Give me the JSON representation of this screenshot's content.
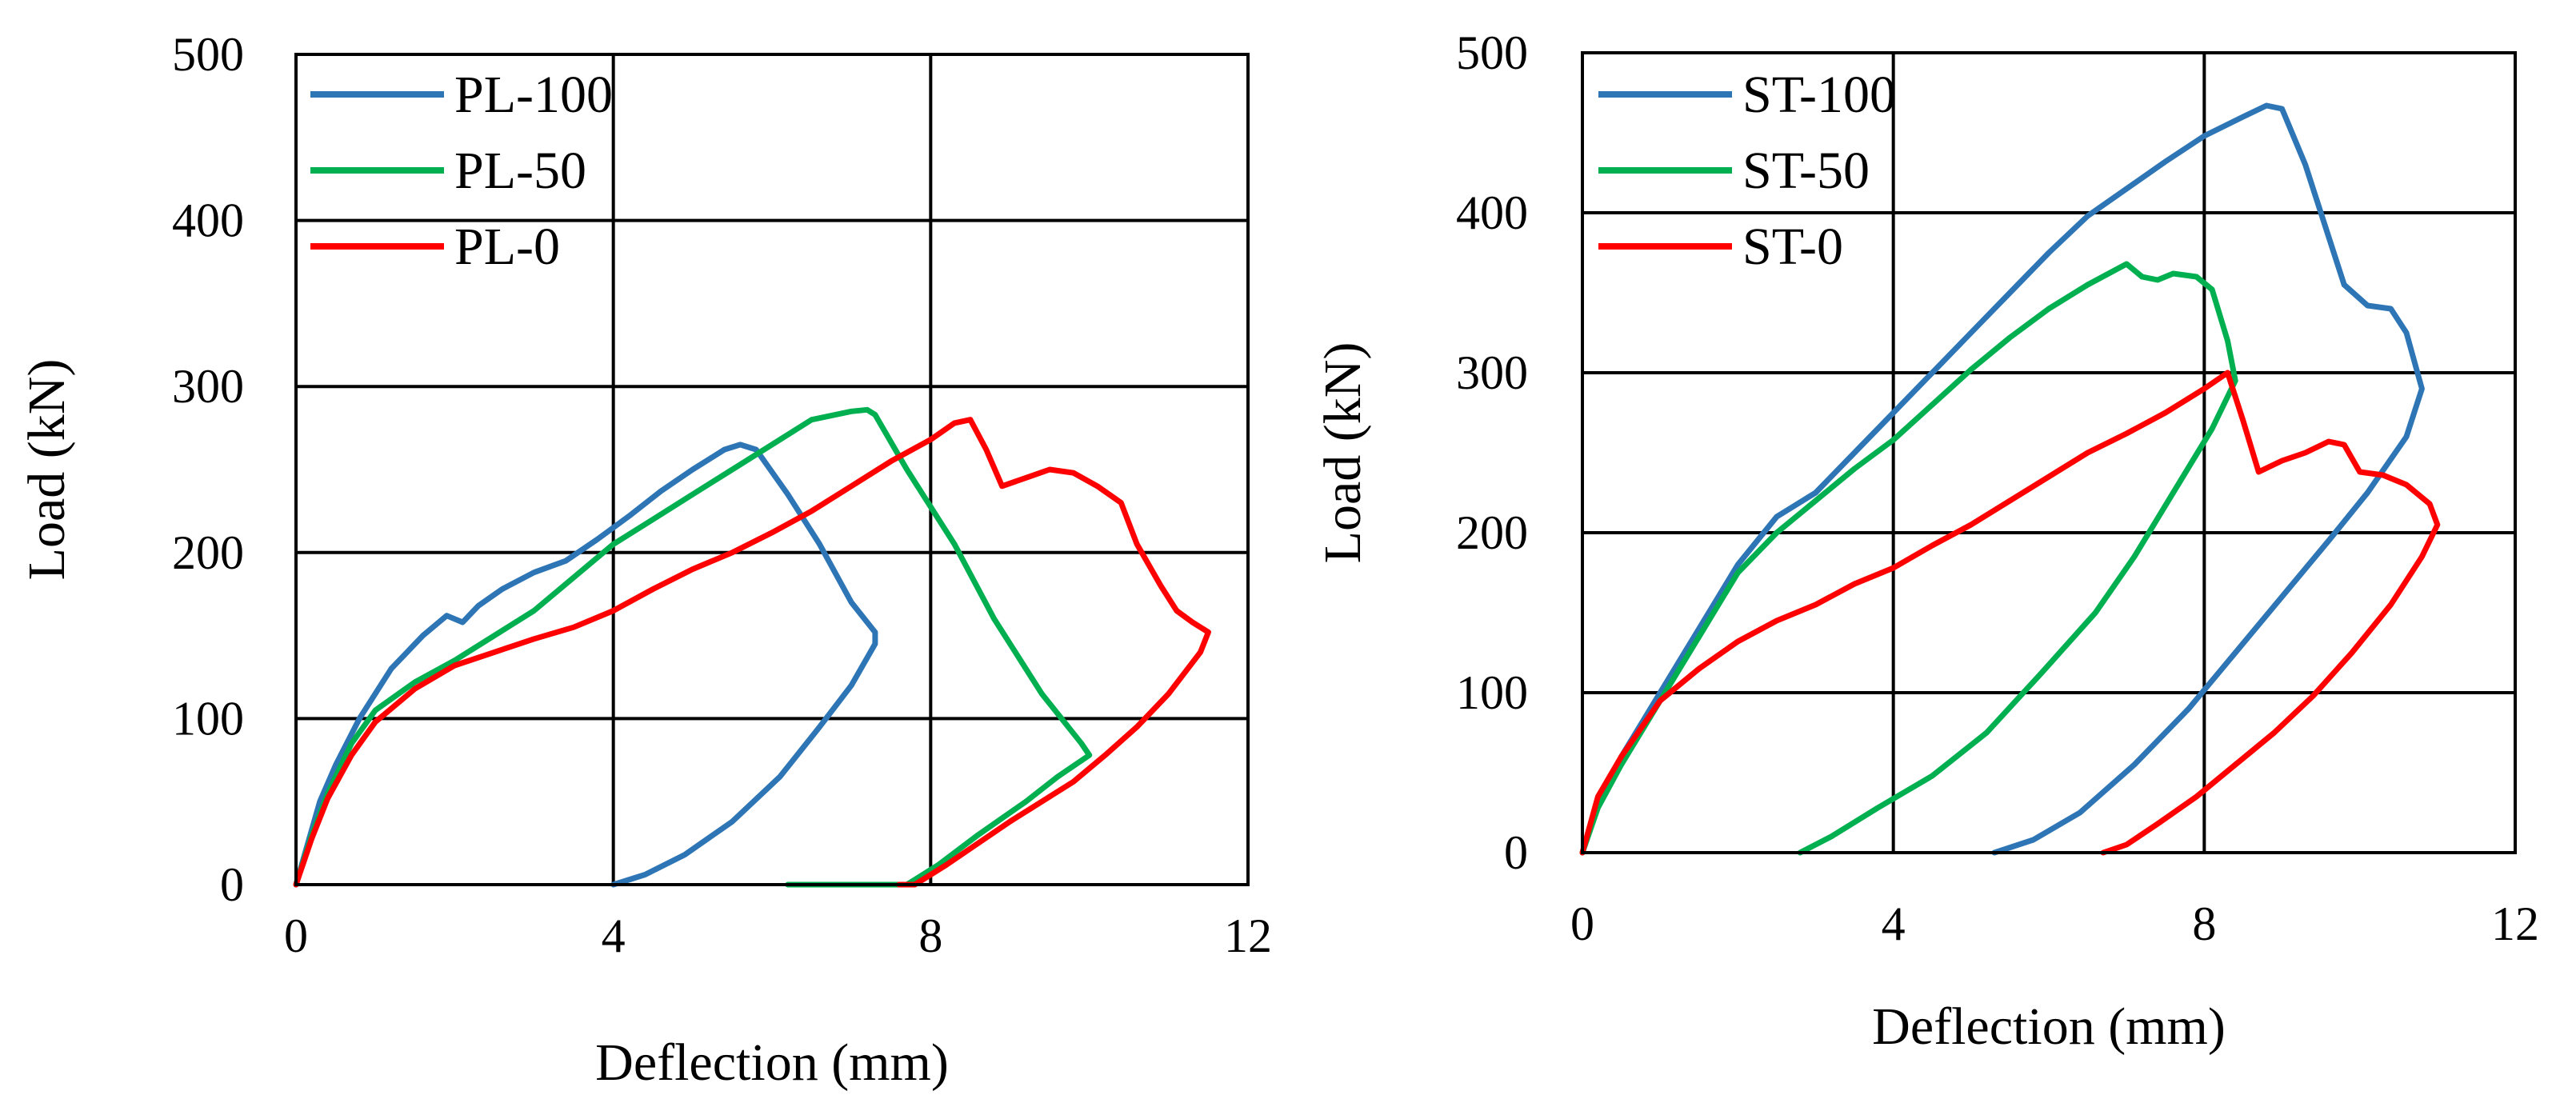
{
  "chart_data": [
    {
      "type": "line",
      "xlabel": "Deflection (mm)",
      "ylabel": "Load (kN)",
      "xlim": [
        0,
        12
      ],
      "ylim": [
        0,
        500
      ],
      "xticks": [
        "0",
        "4",
        "8",
        "12"
      ],
      "yticks": [
        "0",
        "100",
        "200",
        "300",
        "400",
        "500"
      ],
      "grid": true,
      "legend_position": "top-left",
      "series": [
        {
          "name": "PL-100",
          "color": "#2E75B6",
          "points": [
            [
              0,
              0
            ],
            [
              0.15,
              25
            ],
            [
              0.3,
              50
            ],
            [
              0.5,
              72
            ],
            [
              0.8,
              100
            ],
            [
              1.2,
              130
            ],
            [
              1.6,
              150
            ],
            [
              1.9,
              162
            ],
            [
              2.1,
              158
            ],
            [
              2.3,
              168
            ],
            [
              2.6,
              178
            ],
            [
              3.0,
              188
            ],
            [
              3.4,
              195
            ],
            [
              3.8,
              208
            ],
            [
              4.2,
              222
            ],
            [
              4.6,
              237
            ],
            [
              5.0,
              250
            ],
            [
              5.4,
              262
            ],
            [
              5.6,
              265
            ],
            [
              5.8,
              262
            ],
            [
              6.2,
              235
            ],
            [
              6.6,
              205
            ],
            [
              7.0,
              170
            ],
            [
              7.3,
              152
            ],
            [
              7.3,
              145
            ],
            [
              7.0,
              120
            ],
            [
              6.6,
              95
            ],
            [
              6.1,
              65
            ],
            [
              5.5,
              38
            ],
            [
              4.9,
              18
            ],
            [
              4.4,
              6
            ],
            [
              4.0,
              0
            ]
          ]
        },
        {
          "name": "PL-50",
          "color": "#00B050",
          "points": [
            [
              0,
              0
            ],
            [
              0.2,
              30
            ],
            [
              0.4,
              55
            ],
            [
              0.7,
              85
            ],
            [
              1.0,
              105
            ],
            [
              1.5,
              122
            ],
            [
              2.0,
              135
            ],
            [
              2.5,
              150
            ],
            [
              3.0,
              165
            ],
            [
              3.5,
              185
            ],
            [
              4.0,
              205
            ],
            [
              4.5,
              220
            ],
            [
              5.0,
              235
            ],
            [
              5.5,
              250
            ],
            [
              6.0,
              265
            ],
            [
              6.5,
              280
            ],
            [
              7.0,
              285
            ],
            [
              7.2,
              286
            ],
            [
              7.3,
              283
            ],
            [
              7.7,
              250
            ],
            [
              8.3,
              205
            ],
            [
              8.8,
              160
            ],
            [
              9.4,
              115
            ],
            [
              9.9,
              85
            ],
            [
              10.0,
              78
            ],
            [
              9.6,
              65
            ],
            [
              9.2,
              50
            ],
            [
              8.6,
              30
            ],
            [
              8.1,
              12
            ],
            [
              7.7,
              0
            ],
            [
              6.2,
              0
            ]
          ]
        },
        {
          "name": "PL-0",
          "color": "#FF0000",
          "points": [
            [
              0,
              0
            ],
            [
              0.2,
              28
            ],
            [
              0.4,
              52
            ],
            [
              0.7,
              78
            ],
            [
              1.0,
              98
            ],
            [
              1.5,
              118
            ],
            [
              2.0,
              132
            ],
            [
              2.5,
              140
            ],
            [
              3.0,
              148
            ],
            [
              3.5,
              155
            ],
            [
              4.0,
              165
            ],
            [
              4.5,
              178
            ],
            [
              5.0,
              190
            ],
            [
              5.5,
              200
            ],
            [
              6.0,
              212
            ],
            [
              6.5,
              225
            ],
            [
              7.0,
              240
            ],
            [
              7.5,
              255
            ],
            [
              8.0,
              268
            ],
            [
              8.3,
              278
            ],
            [
              8.5,
              280
            ],
            [
              8.7,
              262
            ],
            [
              8.9,
              240
            ],
            [
              9.2,
              245
            ],
            [
              9.5,
              250
            ],
            [
              9.8,
              248
            ],
            [
              10.1,
              240
            ],
            [
              10.4,
              230
            ],
            [
              10.6,
              205
            ],
            [
              10.9,
              180
            ],
            [
              11.1,
              165
            ],
            [
              11.3,
              158
            ],
            [
              11.5,
              152
            ],
            [
              11.4,
              140
            ],
            [
              11.0,
              115
            ],
            [
              10.6,
              95
            ],
            [
              10.2,
              78
            ],
            [
              9.8,
              62
            ],
            [
              9.4,
              50
            ],
            [
              9.0,
              38
            ],
            [
              8.6,
              25
            ],
            [
              8.2,
              12
            ],
            [
              7.8,
              0
            ],
            [
              7.6,
              0
            ]
          ]
        }
      ]
    },
    {
      "type": "line",
      "xlabel": "Deflection (mm)",
      "ylabel": "Load (kN)",
      "xlim": [
        0,
        12
      ],
      "ylim": [
        0,
        500
      ],
      "xticks": [
        "0",
        "4",
        "8",
        "12"
      ],
      "yticks": [
        "0",
        "100",
        "200",
        "300",
        "400",
        "500"
      ],
      "grid": true,
      "legend_position": "top-left",
      "series": [
        {
          "name": "ST-100",
          "color": "#2E75B6",
          "points": [
            [
              0,
              0
            ],
            [
              0.2,
              30
            ],
            [
              0.5,
              60
            ],
            [
              1.0,
              100
            ],
            [
              1.5,
              140
            ],
            [
              2.0,
              180
            ],
            [
              2.5,
              210
            ],
            [
              3.0,
              225
            ],
            [
              3.5,
              250
            ],
            [
              4.0,
              275
            ],
            [
              4.5,
              300
            ],
            [
              5.0,
              325
            ],
            [
              5.5,
              350
            ],
            [
              6.0,
              375
            ],
            [
              6.5,
              398
            ],
            [
              7.0,
              415
            ],
            [
              7.5,
              432
            ],
            [
              8.0,
              448
            ],
            [
              8.5,
              460
            ],
            [
              8.8,
              467
            ],
            [
              9.0,
              465
            ],
            [
              9.3,
              430
            ],
            [
              9.6,
              385
            ],
            [
              9.8,
              355
            ],
            [
              10.1,
              342
            ],
            [
              10.4,
              340
            ],
            [
              10.6,
              325
            ],
            [
              10.8,
              290
            ],
            [
              10.6,
              260
            ],
            [
              10.1,
              225
            ],
            [
              9.6,
              195
            ],
            [
              9.0,
              160
            ],
            [
              8.4,
              125
            ],
            [
              7.8,
              90
            ],
            [
              7.1,
              55
            ],
            [
              6.4,
              25
            ],
            [
              5.8,
              8
            ],
            [
              5.3,
              0
            ]
          ]
        },
        {
          "name": "ST-50",
          "color": "#00B050",
          "points": [
            [
              0,
              0
            ],
            [
              0.2,
              28
            ],
            [
              0.5,
              55
            ],
            [
              1.0,
              95
            ],
            [
              1.5,
              135
            ],
            [
              2.0,
              175
            ],
            [
              2.5,
              200
            ],
            [
              3.0,
              220
            ],
            [
              3.5,
              240
            ],
            [
              4.0,
              258
            ],
            [
              4.5,
              280
            ],
            [
              5.0,
              302
            ],
            [
              5.5,
              322
            ],
            [
              6.0,
              340
            ],
            [
              6.5,
              355
            ],
            [
              7.0,
              368
            ],
            [
              7.2,
              360
            ],
            [
              7.4,
              358
            ],
            [
              7.6,
              362
            ],
            [
              7.9,
              360
            ],
            [
              8.1,
              352
            ],
            [
              8.3,
              320
            ],
            [
              8.4,
              295
            ],
            [
              8.1,
              265
            ],
            [
              7.6,
              225
            ],
            [
              7.1,
              185
            ],
            [
              6.6,
              150
            ],
            [
              5.9,
              112
            ],
            [
              5.2,
              75
            ],
            [
              4.5,
              48
            ],
            [
              3.8,
              28
            ],
            [
              3.2,
              10
            ],
            [
              2.8,
              0
            ]
          ]
        },
        {
          "name": "ST-0",
          "color": "#FF0000",
          "points": [
            [
              0,
              0
            ],
            [
              0.2,
              35
            ],
            [
              0.5,
              60
            ],
            [
              1.0,
              95
            ],
            [
              1.5,
              115
            ],
            [
              2.0,
              132
            ],
            [
              2.5,
              145
            ],
            [
              3.0,
              155
            ],
            [
              3.5,
              168
            ],
            [
              4.0,
              178
            ],
            [
              4.5,
              192
            ],
            [
              5.0,
              205
            ],
            [
              5.5,
              220
            ],
            [
              6.0,
              235
            ],
            [
              6.5,
              250
            ],
            [
              7.0,
              262
            ],
            [
              7.5,
              275
            ],
            [
              8.0,
              290
            ],
            [
              8.3,
              300
            ],
            [
              8.5,
              270
            ],
            [
              8.7,
              238
            ],
            [
              9.0,
              245
            ],
            [
              9.3,
              250
            ],
            [
              9.6,
              257
            ],
            [
              9.8,
              255
            ],
            [
              10.0,
              238
            ],
            [
              10.3,
              236
            ],
            [
              10.6,
              230
            ],
            [
              10.9,
              218
            ],
            [
              11.0,
              205
            ],
            [
              10.8,
              185
            ],
            [
              10.4,
              155
            ],
            [
              9.9,
              125
            ],
            [
              9.4,
              98
            ],
            [
              8.9,
              75
            ],
            [
              8.4,
              55
            ],
            [
              7.9,
              35
            ],
            [
              7.4,
              18
            ],
            [
              7.0,
              5
            ],
            [
              6.7,
              0
            ]
          ]
        }
      ]
    }
  ]
}
